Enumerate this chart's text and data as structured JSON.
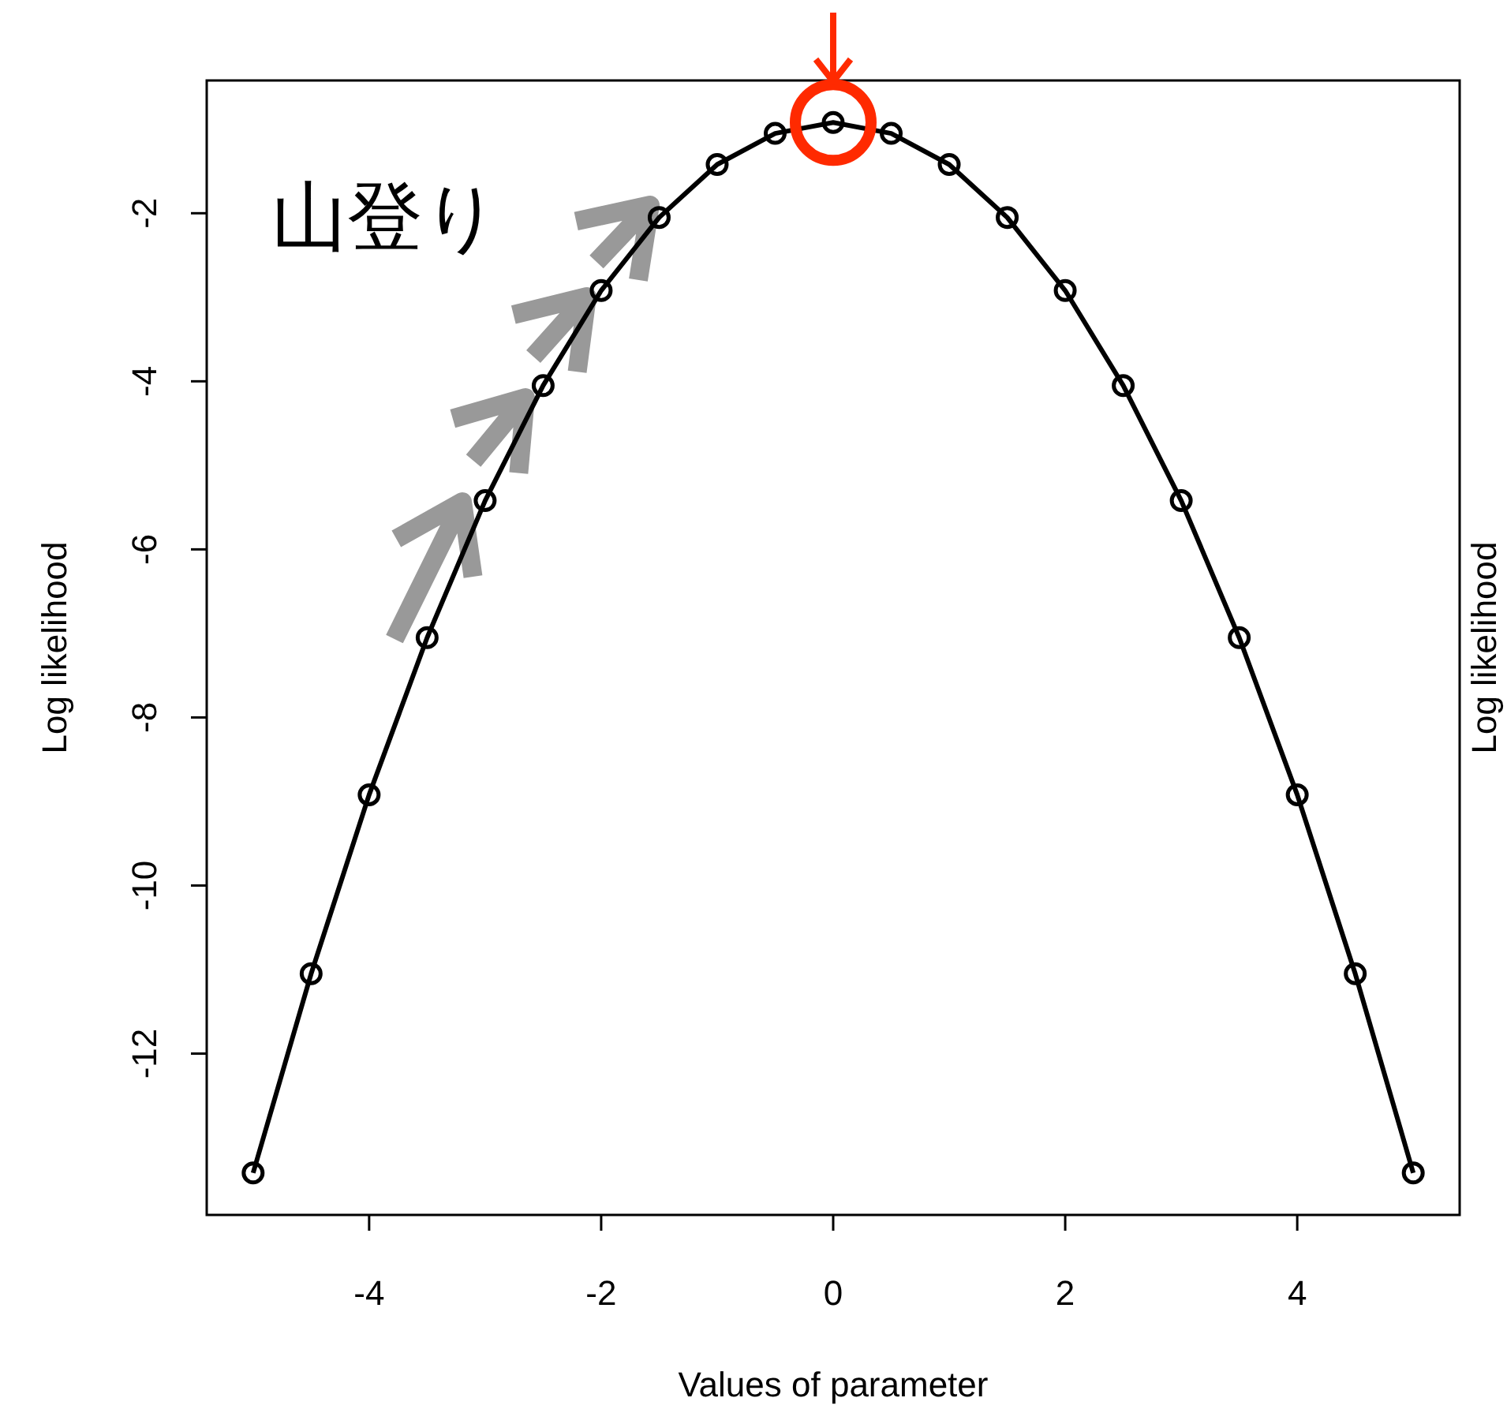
{
  "chart_data": {
    "type": "line",
    "xlabel": "Values of parameter",
    "ylabel": "Log likelihood",
    "x": [
      -5,
      -4.5,
      -4,
      -3.5,
      -3,
      -2.5,
      -2,
      -1.5,
      -1,
      -0.5,
      0,
      0.5,
      1,
      1.5,
      2,
      2.5,
      3,
      3.5,
      4,
      4.5,
      5
    ],
    "values": [
      -13.42,
      -11.05,
      -8.92,
      -7.05,
      -5.42,
      -4.05,
      -2.92,
      -2.05,
      -1.42,
      -1.05,
      -0.92,
      -1.05,
      -1.42,
      -2.05,
      -2.92,
      -4.05,
      -5.42,
      -7.05,
      -8.92,
      -11.05,
      -13.42
    ],
    "color": "#000000",
    "marker": "circle",
    "line_style": "solid",
    "xlim": [
      -5.4,
      5.4
    ],
    "ylim": [
      -13.92,
      -0.42
    ],
    "xticks": [
      -4,
      -2,
      0,
      2,
      4
    ],
    "yticks": [
      -12,
      -10,
      -8,
      -6,
      -4,
      -2
    ],
    "grid": false,
    "annotations": [
      "山登り",
      "Log likelihood"
    ]
  }
}
